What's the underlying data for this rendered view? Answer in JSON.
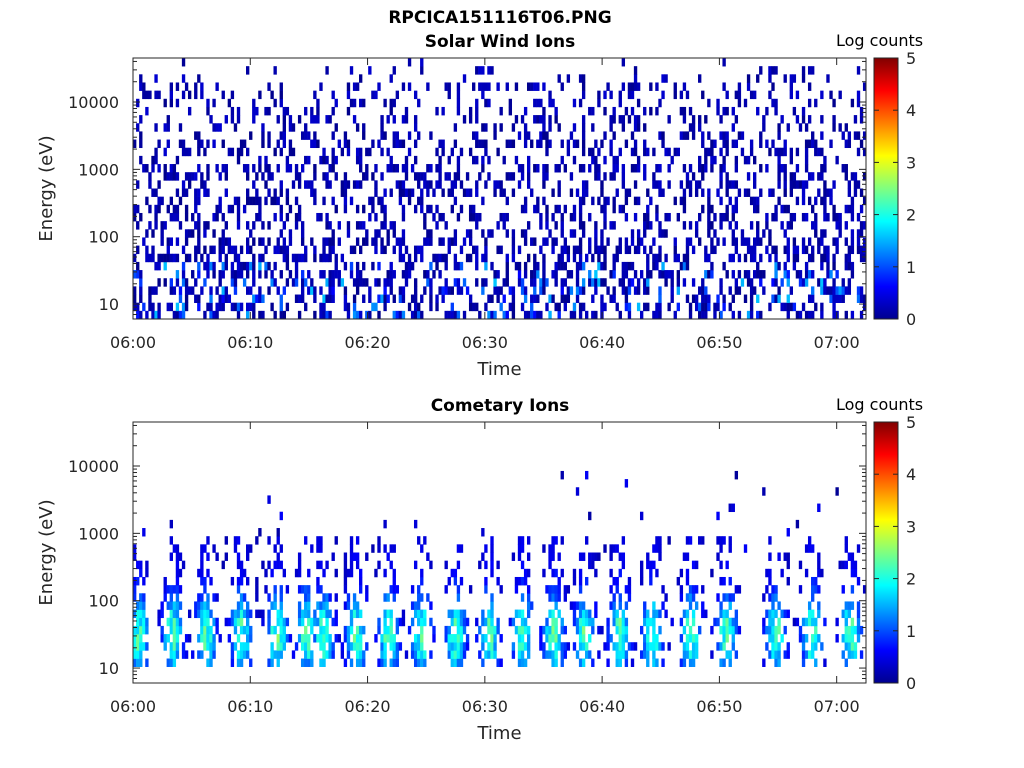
{
  "figure_title": "RPCICA151116T06.PNG",
  "chart_data": [
    {
      "type": "heatmap",
      "title": "Solar Wind Ions",
      "xlabel": "Time",
      "ylabel": "Energy (eV)",
      "y_scale": "log",
      "ylim": [
        6,
        45000
      ],
      "x_ticks": [
        "06:00",
        "06:10",
        "06:20",
        "06:30",
        "06:40",
        "06:50",
        "07:00"
      ],
      "x_range_minutes": [
        0,
        62.5
      ],
      "y_ticks": [
        "10",
        "100",
        "1000",
        "10000"
      ],
      "y_tick_values": [
        10,
        100,
        1000,
        10000
      ],
      "colorbar": {
        "label": "Log counts",
        "ticks": [
          "0",
          "1",
          "2",
          "3",
          "4",
          "5"
        ],
        "range": [
          0,
          5
        ],
        "colormap": "jet"
      },
      "distribution": "sparse scattered counts across all energies, mostly log counts near 0, slightly denser and up to ~1.5 below 40 eV",
      "grid": false
    },
    {
      "type": "heatmap",
      "title": "Cometary Ions",
      "xlabel": "Time",
      "ylabel": "Energy (eV)",
      "y_scale": "log",
      "ylim": [
        6,
        45000
      ],
      "x_ticks": [
        "06:00",
        "06:10",
        "06:20",
        "06:30",
        "06:40",
        "06:50",
        "07:00"
      ],
      "x_range_minutes": [
        0,
        62.5
      ],
      "y_ticks": [
        "10",
        "100",
        "1000",
        "10000"
      ],
      "y_tick_values": [
        10,
        100,
        1000,
        10000
      ],
      "colorbar": {
        "label": "Log counts",
        "ticks": [
          "0",
          "1",
          "2",
          "3",
          "4",
          "5"
        ],
        "range": [
          0,
          5
        ],
        "colormap": "jet"
      },
      "bursts_minutes": [
        0.5,
        3.4,
        6.2,
        9.2,
        12.3,
        14.8,
        16.2,
        19.0,
        21.8,
        24.6,
        27.5,
        30.4,
        33.2,
        35.9,
        38.5,
        41.5,
        44.3,
        47.6,
        50.6,
        54.8,
        57.9,
        61.2
      ],
      "distribution": "periodic bursts about every 2.9 minutes, counts mostly between 15 and 600 eV, peak log counts ~2.5 near 20-40 eV",
      "grid": false
    }
  ]
}
